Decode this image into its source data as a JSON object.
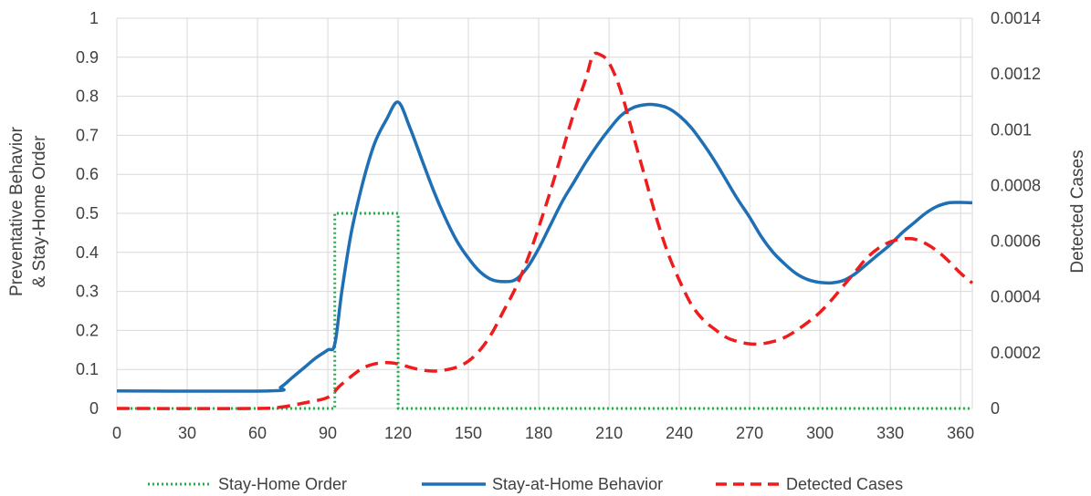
{
  "chart_data": {
    "type": "line",
    "title": "",
    "xlabel": "",
    "ylabel_left_line1": "Preventative Behavior",
    "ylabel_left_line2": "& Stay-Home Order",
    "ylabel_right": "Detected Cases",
    "xlim": [
      0,
      365
    ],
    "ylim_left": [
      0,
      1
    ],
    "ylim_right": [
      0,
      0.0014
    ],
    "x_ticks": [
      "0",
      "30",
      "60",
      "90",
      "120",
      "150",
      "180",
      "210",
      "240",
      "270",
      "300",
      "330",
      "360"
    ],
    "y_left_ticks": [
      "0",
      "0.1",
      "0.2",
      "0.3",
      "0.4",
      "0.5",
      "0.6",
      "0.7",
      "0.8",
      "0.9",
      "1"
    ],
    "y_right_ticks": [
      "0",
      "0.0002",
      "0.0004",
      "0.0006",
      "0.0008",
      "0.001",
      "0.0012",
      "0.0014"
    ],
    "grid": true,
    "legend_position": "bottom",
    "series": [
      {
        "name": "Stay-Home Order",
        "axis": "left",
        "style": "dotted",
        "color": "#22b04b",
        "x": [
          0,
          93,
          93,
          120,
          120,
          365
        ],
        "y": [
          0,
          0,
          0.5,
          0.5,
          0,
          0
        ]
      },
      {
        "name": "Stay-at-Home Behavior",
        "axis": "left",
        "style": "solid",
        "color": "#1f6fb5",
        "x": [
          0,
          65,
          70,
          75,
          80,
          85,
          90,
          93,
          96,
          100,
          105,
          110,
          115,
          120,
          125,
          130,
          135,
          140,
          145,
          150,
          155,
          160,
          165,
          170,
          175,
          180,
          185,
          190,
          195,
          200,
          205,
          210,
          215,
          220,
          225,
          230,
          235,
          240,
          245,
          250,
          255,
          260,
          265,
          270,
          275,
          280,
          285,
          290,
          295,
          300,
          305,
          310,
          315,
          320,
          325,
          330,
          335,
          340,
          345,
          350,
          355,
          360,
          365
        ],
        "y": [
          0.045,
          0.045,
          0.055,
          0.08,
          0.105,
          0.13,
          0.15,
          0.165,
          0.3,
          0.45,
          0.58,
          0.68,
          0.74,
          0.785,
          0.72,
          0.64,
          0.56,
          0.49,
          0.43,
          0.385,
          0.35,
          0.33,
          0.325,
          0.33,
          0.36,
          0.41,
          0.47,
          0.53,
          0.58,
          0.63,
          0.675,
          0.715,
          0.75,
          0.77,
          0.778,
          0.778,
          0.77,
          0.75,
          0.72,
          0.68,
          0.635,
          0.585,
          0.535,
          0.49,
          0.44,
          0.4,
          0.37,
          0.345,
          0.33,
          0.323,
          0.322,
          0.328,
          0.345,
          0.37,
          0.395,
          0.42,
          0.45,
          0.475,
          0.5,
          0.518,
          0.527,
          0.528,
          0.527
        ]
      },
      {
        "name": "Detected Cases",
        "axis": "right",
        "style": "dashed",
        "color": "#ee1c1c",
        "x": [
          0,
          60,
          70,
          80,
          90,
          95,
          100,
          105,
          110,
          115,
          120,
          125,
          130,
          135,
          140,
          145,
          150,
          155,
          160,
          165,
          170,
          175,
          180,
          185,
          190,
          195,
          200,
          203,
          206,
          210,
          215,
          220,
          225,
          230,
          235,
          240,
          245,
          250,
          255,
          260,
          265,
          270,
          275,
          280,
          285,
          290,
          295,
          300,
          305,
          310,
          315,
          320,
          325,
          330,
          335,
          340,
          345,
          350,
          355,
          360,
          365
        ],
        "y": [
          0,
          0,
          5e-06,
          2e-05,
          4e-05,
          8e-05,
          0.000115,
          0.000145,
          0.00016,
          0.000165,
          0.00016,
          0.000148,
          0.000138,
          0.000134,
          0.000138,
          0.000148,
          0.00017,
          0.00021,
          0.00027,
          0.00035,
          0.00043,
          0.00053,
          0.00065,
          0.00078,
          0.00092,
          0.00106,
          0.00118,
          0.001265,
          0.00127,
          0.00124,
          0.00114,
          0.00099,
          0.00084,
          0.00069,
          0.00056,
          0.00046,
          0.000375,
          0.00032,
          0.000285,
          0.000255,
          0.00024,
          0.000232,
          0.000232,
          0.00024,
          0.000255,
          0.00028,
          0.00031,
          0.000345,
          0.00039,
          0.00044,
          0.00049,
          0.00054,
          0.000575,
          0.000598,
          0.000608,
          0.000608,
          0.000592,
          0.000565,
          0.000528,
          0.000485,
          0.00045
        ]
      }
    ]
  }
}
